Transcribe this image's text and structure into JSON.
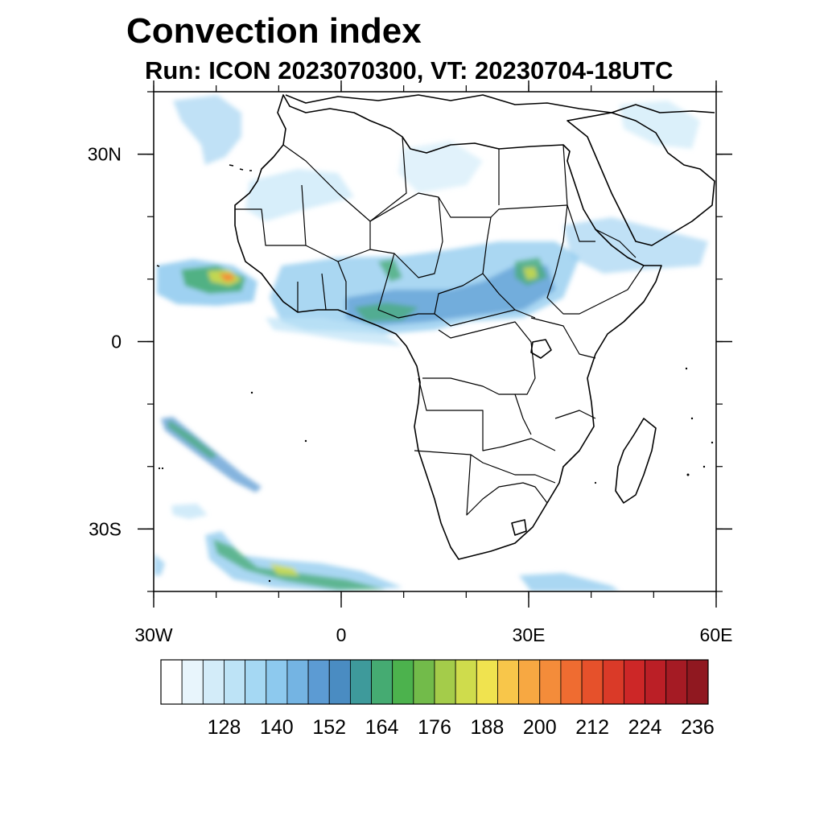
{
  "title": "Convection index",
  "subtitle": "Run: ICON 2023070300,  VT: 20230704-18UTC",
  "map": {
    "lon_range": [
      -30,
      60
    ],
    "lat_range": [
      -40,
      40
    ],
    "lon_ticks": [
      {
        "value": -30,
        "label": "30W"
      },
      {
        "value": 0,
        "label": "0"
      },
      {
        "value": 30,
        "label": "30E"
      },
      {
        "value": 60,
        "label": "60E"
      }
    ],
    "lat_ticks": [
      {
        "value": 30,
        "label": "30N"
      },
      {
        "value": 0,
        "label": "0"
      },
      {
        "value": -30,
        "label": "30S"
      }
    ],
    "minor_lon_step": 10,
    "minor_lat_step": 10,
    "colors": {
      "coast": "#000000",
      "border": "#000000",
      "frame": "#000000"
    }
  },
  "colorbar": {
    "labels": [
      "128",
      "140",
      "152",
      "164",
      "176",
      "188",
      "200",
      "212",
      "224",
      "236"
    ],
    "colors": [
      "#ffffff",
      "#e8f5fc",
      "#d3ecf9",
      "#bde3f6",
      "#a5d8f3",
      "#8dc9ee",
      "#74b4e3",
      "#5c9bd3",
      "#4a8cc2",
      "#3e9a9b",
      "#45ab72",
      "#4cb24d",
      "#72bb4a",
      "#a4cc4a",
      "#cfdc4c",
      "#f0e34f",
      "#f8c64a",
      "#f7a842",
      "#f48c3a",
      "#ef6c31",
      "#e6512b",
      "#da3a28",
      "#cd2727",
      "#bb1f26",
      "#a51b24",
      "#901820"
    ]
  },
  "fields": {
    "colors": {
      "weak": "#bde3f6",
      "light": "#8dc9ee",
      "mid": "#5c9bd3",
      "green": "#45ab72",
      "yellow": "#cfdc4c",
      "orange": "#f48c3a",
      "red": "#da3a28"
    }
  }
}
